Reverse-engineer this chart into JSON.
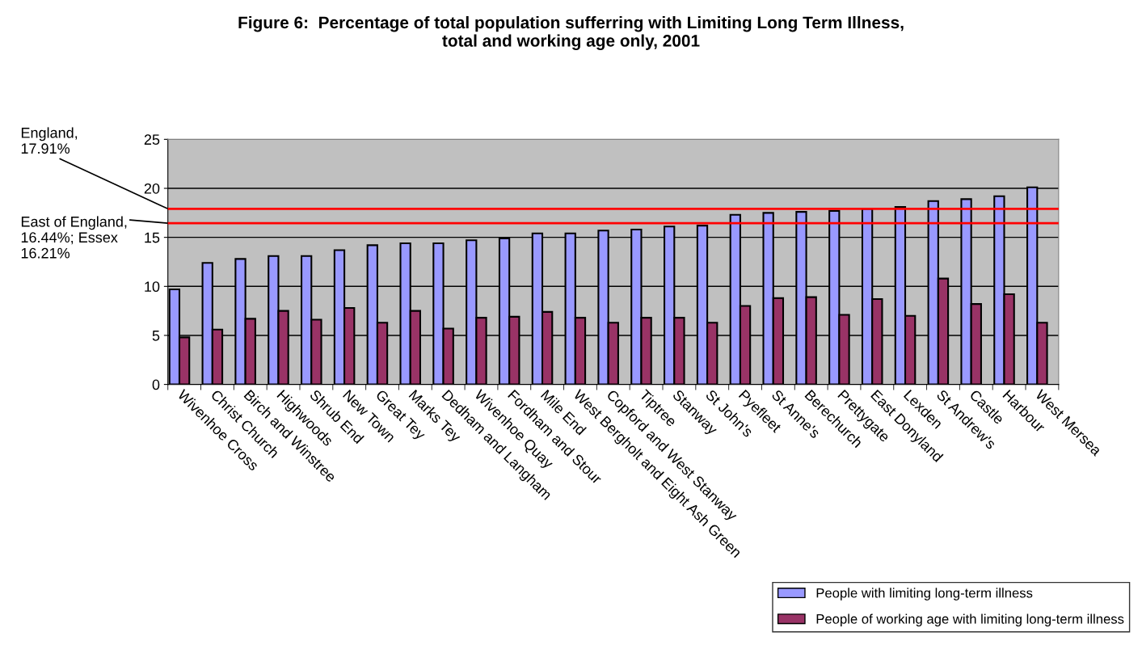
{
  "chart_data": {
    "type": "bar",
    "title": "Figure 6:  Percentage of total population sufferring with Limiting Long Term Illness,\ntotal and working age only, 2001",
    "categories": [
      "Wivenhoe Cross",
      "Christ Church",
      "Birch and Winstree",
      "Highwoods",
      "Shrub End",
      "New Town",
      "Great Tey",
      "Marks Tey",
      "Dedham and Langham",
      "Wivenhoe Quay",
      "Fordham and Stour",
      "Mile End",
      "West Bergholt and Eight Ash Green",
      "Copford and West Stanway",
      "Tiptree",
      "Stanway",
      "St John's",
      "Pyefleet",
      "St Anne's",
      "Berechurch",
      "Prettygate",
      "East Donyland",
      "Lexden",
      "St Andrew's",
      "Castle",
      "Harbour",
      "West Mersea"
    ],
    "series": [
      {
        "name": "People with limiting long-term illness",
        "color": "#9999ff",
        "values": [
          9.7,
          12.4,
          12.8,
          13.1,
          13.1,
          13.7,
          14.2,
          14.4,
          14.4,
          14.7,
          14.9,
          15.4,
          15.4,
          15.7,
          15.8,
          16.1,
          16.2,
          17.3,
          17.5,
          17.6,
          17.7,
          17.9,
          18.1,
          18.7,
          18.9,
          19.2,
          20.1
        ]
      },
      {
        "name": "People of working age with limiting long-term illness",
        "color": "#993366",
        "values": [
          4.8,
          5.6,
          6.7,
          7.5,
          6.6,
          7.8,
          6.3,
          7.5,
          5.7,
          6.8,
          6.9,
          7.4,
          6.8,
          6.3,
          6.8,
          6.8,
          6.3,
          8.0,
          8.8,
          8.9,
          7.1,
          8.7,
          7.0,
          10.8,
          8.2,
          9.2,
          6.3
        ]
      }
    ],
    "ylim": [
      0,
      25
    ],
    "yticks": [
      0,
      5,
      10,
      15,
      20,
      25
    ],
    "grid": "y",
    "legend": "bottom right",
    "ref_lines": [
      {
        "axis": "y",
        "value": 17.91,
        "label": "England,\n17.91%",
        "color": "#ff0000"
      },
      {
        "axis": "y",
        "value": 16.44,
        "label": "East of England,\n16.44%; Essex\n16.21%",
        "color": "#ff0000"
      }
    ]
  }
}
